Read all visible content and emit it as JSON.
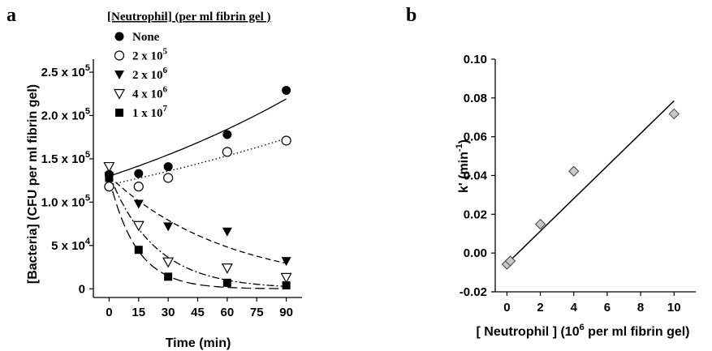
{
  "panels": {
    "a": "a",
    "b": "b"
  },
  "chart_data": [
    {
      "type": "scatter",
      "panel": "a",
      "legend_title": "[Neutrophil] (per ml fibrin gel )",
      "legend_placement": "top-left",
      "xlabel": "Time (min)",
      "ylabel": "[Bacteria] (CFU per ml fibrin gel)",
      "xlim": [
        -8,
        98
      ],
      "ylim": [
        -10000,
        265000
      ],
      "xticks": [
        "0",
        "15",
        "30",
        "45",
        "60",
        "75",
        "90"
      ],
      "yticks": [
        {
          "value": 0,
          "mantissa": "0",
          "exp": ""
        },
        {
          "value": 50000,
          "mantissa": "5 x 10",
          "exp": "4"
        },
        {
          "value": 100000,
          "mantissa": "1.0 x 10",
          "exp": "5"
        },
        {
          "value": 150000,
          "mantissa": "1.5 x 10",
          "exp": "5"
        },
        {
          "value": 200000,
          "mantissa": "2.0 x 10",
          "exp": "5"
        },
        {
          "value": 250000,
          "mantissa": "2.5 x 10",
          "exp": "5"
        }
      ],
      "grid": false,
      "series": [
        {
          "name": "None",
          "label_base": "None",
          "label_exp": "",
          "marker": "circle-filled",
          "line": "solid",
          "x": [
            0,
            15,
            30,
            60,
            90
          ],
          "y": [
            132000,
            133000,
            141000,
            178000,
            229000
          ],
          "fit": {
            "a": 130000,
            "k": 0.0058
          }
        },
        {
          "name": "2 x 10^5",
          "label_base": "2 x 10",
          "label_exp": "5",
          "marker": "circle-open",
          "line": "dotted",
          "x": [
            0,
            15,
            30,
            60,
            90
          ],
          "y": [
            118000,
            118000,
            128000,
            158000,
            171000
          ],
          "fit": {
            "a": 120000,
            "k": 0.0041
          }
        },
        {
          "name": "2 x 10^6",
          "label_base": "2 x 10",
          "label_exp": "6",
          "marker": "triangle-down-filled",
          "line": "dashed",
          "x": [
            0,
            15,
            30,
            60,
            90
          ],
          "y": [
            130000,
            98000,
            72000,
            66000,
            32000
          ],
          "fit": {
            "a": 130000,
            "k": 0.0165
          }
        },
        {
          "name": "4 x 10^6",
          "label_base": "4 x 10",
          "label_exp": "6",
          "marker": "triangle-down-open",
          "line": "dash-dot",
          "x": [
            0,
            15,
            30,
            60,
            90
          ],
          "y": [
            141000,
            73000,
            31000,
            24000,
            13000
          ],
          "fit": {
            "a": 132000,
            "k": 0.043
          }
        },
        {
          "name": "1 x 10^7",
          "label_base": "1 x 10",
          "label_exp": "7",
          "marker": "square-filled",
          "line": "long-dash",
          "x": [
            0,
            15,
            30,
            60,
            90
          ],
          "y": [
            128000,
            45000,
            14000,
            7000,
            4000
          ],
          "fit": {
            "a": 128000,
            "k": 0.072
          }
        }
      ]
    },
    {
      "type": "scatter",
      "panel": "b",
      "xlabel_text": "[ Neutrophil ] (10",
      "xlabel_exp": "6",
      "xlabel_rest": " per ml fibrin gel)",
      "ylabel_text": "k' (min",
      "ylabel_exp": "-1",
      "ylabel_close": ")",
      "xlim": [
        -0.7,
        11.3
      ],
      "ylim": [
        -0.02,
        0.1
      ],
      "xticks": [
        0,
        2,
        4,
        6,
        8,
        10
      ],
      "yticks": [
        "0.10",
        "0.08",
        "0.06",
        "0.04",
        "0.02",
        "0.00",
        "-0.02"
      ],
      "grid": false,
      "series": [
        {
          "marker": "diamond-gray",
          "x": [
            0,
            0.2,
            2,
            4,
            10
          ],
          "y": [
            -0.0058,
            -0.0041,
            0.0149,
            0.0422,
            0.0718
          ]
        }
      ],
      "fit_line": {
        "x": [
          0,
          10
        ],
        "y": [
          -0.0055,
          0.0785
        ]
      }
    }
  ]
}
